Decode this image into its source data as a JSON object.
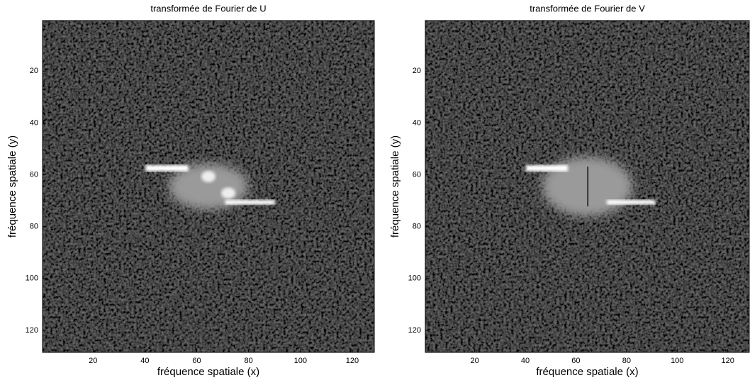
{
  "chart_data": [
    {
      "type": "heatmap",
      "title": "transformée de Fourier de U",
      "x_label": "fréquence spatiale (x)",
      "y_label": "fréquence spatiale (y)",
      "xlim": [
        0.5,
        128.5
      ],
      "ylim": [
        0.5,
        128.5
      ],
      "y_reversed": true,
      "xticks": [
        20,
        40,
        60,
        80,
        100,
        120
      ],
      "yticks": [
        20,
        40,
        60,
        80,
        100,
        120
      ],
      "colormap": "gray"
    },
    {
      "type": "heatmap",
      "title": "transformée de Fourier de V",
      "x_label": "fréquence spatiale (x)",
      "y_label": "fréquence spatiale (y)",
      "xlim": [
        0.5,
        128.5
      ],
      "ylim": [
        0.5,
        128.5
      ],
      "y_reversed": true,
      "xticks": [
        20,
        40,
        60,
        80,
        100,
        120
      ],
      "yticks": [
        20,
        40,
        60,
        80,
        100,
        120
      ],
      "colormap": "gray"
    }
  ]
}
